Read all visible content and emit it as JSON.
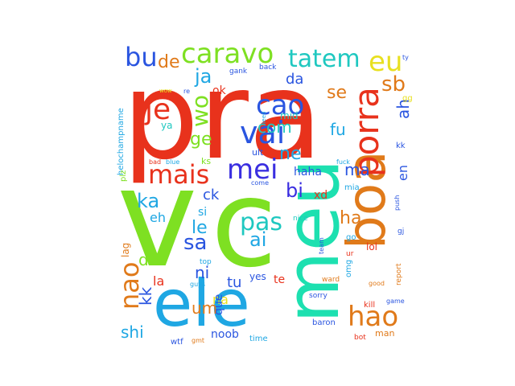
{
  "words": [
    {
      "text": "pra",
      "color": "#e8321c"
    },
    {
      "text": "v",
      "color": "#7ee022"
    },
    {
      "text": "c",
      "color": "#7ee022"
    },
    {
      "text": "ele",
      "color": "#1fa7e3"
    },
    {
      "text": "meu",
      "color": "#1de0b0"
    },
    {
      "text": "boa",
      "color": "#e07a1a"
    },
    {
      "text": "porra",
      "color": "#e8321c"
    },
    {
      "text": "vai",
      "color": "#2a55e0"
    },
    {
      "text": "mais",
      "color": "#e8321c"
    },
    {
      "text": "mei",
      "color": "#3a2ee0"
    },
    {
      "text": "je",
      "color": "#e8321c"
    },
    {
      "text": "cao",
      "color": "#2a55e0"
    },
    {
      "text": "caravo",
      "color": "#7ee022"
    },
    {
      "text": "tatem",
      "color": "#1fc8c0"
    },
    {
      "text": "eu",
      "color": "#e8e020"
    },
    {
      "text": "bu",
      "color": "#2a55e0"
    },
    {
      "text": "ja",
      "color": "#1fa7e3"
    },
    {
      "text": "hao",
      "color": "#e07a1a"
    },
    {
      "text": "nao",
      "color": "#e07a1a"
    },
    {
      "text": "pas",
      "color": "#1fc8c0"
    },
    {
      "text": "ai",
      "color": "#1fa7e3"
    },
    {
      "text": "sa",
      "color": "#2a55e0"
    },
    {
      "text": "ka",
      "color": "#1fa7e3"
    },
    {
      "text": "wo",
      "color": "#7ee022"
    },
    {
      "text": "com",
      "color": "#1fc8c0"
    },
    {
      "text": "ge",
      "color": "#7ee022"
    },
    {
      "text": "ne",
      "color": "#1fa7e3"
    },
    {
      "text": "sb",
      "color": "#e07a1a"
    },
    {
      "text": "ah",
      "color": "#2a55e0"
    },
    {
      "text": "ma",
      "color": "#2a55e0"
    },
    {
      "text": "en",
      "color": "#2a55e0"
    },
    {
      "text": "bi",
      "color": "#3a2ee0"
    },
    {
      "text": "ha",
      "color": "#e07a1a"
    },
    {
      "text": "fu",
      "color": "#1fa7e3"
    },
    {
      "text": "se",
      "color": "#e07a1a"
    },
    {
      "text": "da",
      "color": "#2a55e0"
    },
    {
      "text": "de",
      "color": "#e07a1a"
    },
    {
      "text": "le",
      "color": "#1fa7e3"
    },
    {
      "text": "di",
      "color": "#7ee022"
    },
    {
      "text": "ni",
      "color": "#2a55e0"
    },
    {
      "text": "kk",
      "color": "#2a55e0"
    },
    {
      "text": "shi",
      "color": "#1fa7e3"
    },
    {
      "text": "um",
      "color": "#e07a1a"
    },
    {
      "text": "na",
      "color": "#e8e020"
    },
    {
      "text": "la",
      "color": "#e8321c"
    },
    {
      "text": "tu",
      "color": "#2a55e0"
    },
    {
      "text": "ck",
      "color": "#2a55e0"
    },
    {
      "text": "eh",
      "color": "#1fa7e3"
    },
    {
      "text": "haha",
      "color": "#2a55e0"
    },
    {
      "text": "xd",
      "color": "#e8321c"
    },
    {
      "text": "lol",
      "color": "#e8321c"
    },
    {
      "text": "que",
      "color": "#2a55e0"
    },
    {
      "text": "noob",
      "color": "#2a55e0"
    },
    {
      "text": "te",
      "color": "#e8321c"
    },
    {
      "text": "yes",
      "color": "#2a55e0"
    },
    {
      "text": "omg",
      "color": "#1fa7e3"
    },
    {
      "text": "mid",
      "color": "#1fc8c0"
    },
    {
      "text": "ok",
      "color": "#e8321c"
    },
    {
      "text": "ya",
      "color": "#1fc8c0"
    },
    {
      "text": "si",
      "color": "#1fa7e3"
    },
    {
      "text": "lag",
      "color": "#e07a1a"
    },
    {
      "text": "mia",
      "color": "#1fa7e3"
    },
    {
      "text": "ult",
      "color": "#2a55e0"
    },
    {
      "text": "ks",
      "color": "#7ee022"
    },
    {
      "text": "kk",
      "color": "#2a55e0"
    },
    {
      "text": "helochampname",
      "color": "#1fa7e3"
    },
    {
      "text": "plz",
      "color": "#7ee022"
    },
    {
      "text": "bad",
      "color": "#e8321c"
    },
    {
      "text": "blue",
      "color": "#1fa7e3"
    },
    {
      "text": "fuck",
      "color": "#1fa7e3"
    },
    {
      "text": "come",
      "color": "#2a55e0"
    },
    {
      "text": "nice",
      "color": "#1fc8c0"
    },
    {
      "text": "go",
      "color": "#1fa7e3"
    },
    {
      "text": "ur",
      "color": "#e8321c"
    },
    {
      "text": "team",
      "color": "#2a55e0"
    },
    {
      "text": "top",
      "color": "#1fa7e3"
    },
    {
      "text": "guys",
      "color": "#1fa7e3"
    },
    {
      "text": "ward",
      "color": "#e07a1a"
    },
    {
      "text": "sorry",
      "color": "#2a55e0"
    },
    {
      "text": "baron",
      "color": "#2a55e0"
    },
    {
      "text": "kill",
      "color": "#e8321c"
    },
    {
      "text": "good",
      "color": "#e07a1a"
    },
    {
      "text": "game",
      "color": "#2a55e0"
    },
    {
      "text": "bot",
      "color": "#e8321c"
    },
    {
      "text": "man",
      "color": "#e07a1a"
    },
    {
      "text": "wtf",
      "color": "#2a55e0"
    },
    {
      "text": "gmt",
      "color": "#e07a1a"
    },
    {
      "text": "time",
      "color": "#1fa7e3"
    },
    {
      "text": "report",
      "color": "#e07a1a"
    },
    {
      "text": "push",
      "color": "#2a55e0"
    },
    {
      "text": "gj",
      "color": "#2a55e0"
    },
    {
      "text": "re",
      "color": "#2a55e0"
    },
    {
      "text": "gank",
      "color": "#2a55e0"
    },
    {
      "text": "back",
      "color": "#2a55e0"
    },
    {
      "text": "ty",
      "color": "#2a55e0"
    },
    {
      "text": "wow",
      "color": "#e8e020"
    },
    {
      "text": "need",
      "color": "#1fa7e3"
    },
    {
      "text": "gg",
      "color": "#e8e020"
    }
  ]
}
